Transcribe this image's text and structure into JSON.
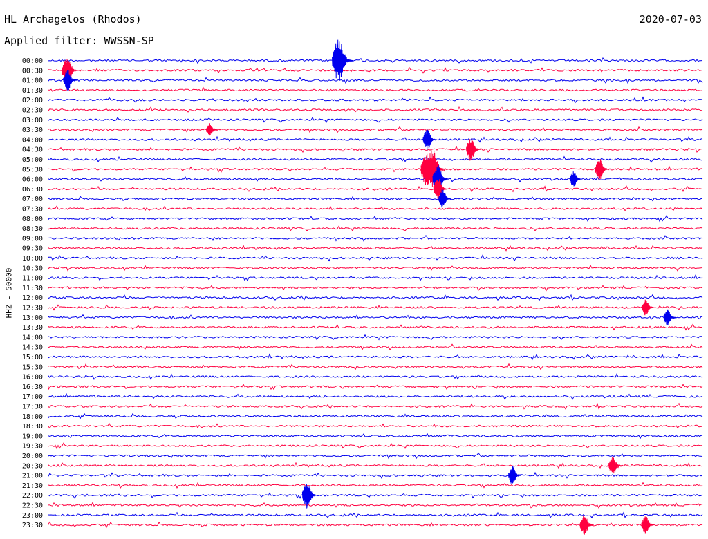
{
  "header": {
    "station": "HL Archagelos (Rhodos)",
    "date": "2020-07-03",
    "filter": "Applied filter: WWSSN-SP"
  },
  "chart_data": {
    "type": "line",
    "title": "HL Archagelos (Rhodos)",
    "xlabel": "",
    "ylabel": "HHZ - 50000",
    "grid": false,
    "legend": "none",
    "colors": [
      "#0000ee",
      "#ff0040"
    ],
    "rows": [
      "00:00",
      "00:30",
      "01:00",
      "01:30",
      "02:00",
      "02:30",
      "03:00",
      "03:30",
      "04:00",
      "04:30",
      "05:00",
      "05:30",
      "06:00",
      "06:30",
      "07:00",
      "07:30",
      "08:00",
      "08:30",
      "09:00",
      "09:30",
      "10:00",
      "10:30",
      "11:00",
      "11:30",
      "12:00",
      "12:30",
      "13:00",
      "13:30",
      "14:00",
      "14:30",
      "15:00",
      "15:30",
      "16:00",
      "16:30",
      "17:00",
      "17:30",
      "18:00",
      "18:30",
      "19:00",
      "19:30",
      "20:00",
      "20:30",
      "21:00",
      "21:30",
      "22:00",
      "22:30",
      "23:00",
      "23:30"
    ],
    "events": [
      {
        "row": "00:00",
        "minute": 13.5,
        "amplitude": 34
      },
      {
        "row": "00:30",
        "minute": 1,
        "amplitude": 22
      },
      {
        "row": "01:00",
        "minute": 1,
        "amplitude": 16
      },
      {
        "row": "03:30",
        "minute": 7.5,
        "amplitude": 10
      },
      {
        "row": "04:00",
        "minute": 17.5,
        "amplitude": 16
      },
      {
        "row": "04:30",
        "minute": 19.5,
        "amplitude": 18
      },
      {
        "row": "05:30",
        "minute": 17.5,
        "amplitude": 26
      },
      {
        "row": "05:30",
        "minute": 17.8,
        "amplitude": 30
      },
      {
        "row": "06:00",
        "minute": 18,
        "amplitude": 22
      },
      {
        "row": "06:30",
        "minute": 18,
        "amplitude": 18
      },
      {
        "row": "07:00",
        "minute": 18.2,
        "amplitude": 14
      },
      {
        "row": "05:30",
        "minute": 25.4,
        "amplitude": 16
      },
      {
        "row": "06:00",
        "minute": 24.2,
        "amplitude": 12
      },
      {
        "row": "12:30",
        "minute": 27.5,
        "amplitude": 12
      },
      {
        "row": "13:00",
        "minute": 28.5,
        "amplitude": 12
      },
      {
        "row": "20:30",
        "minute": 26,
        "amplitude": 14
      },
      {
        "row": "21:00",
        "minute": 21.4,
        "amplitude": 14
      },
      {
        "row": "23:30",
        "minute": 24.7,
        "amplitude": 16
      },
      {
        "row": "23:30",
        "minute": 27.5,
        "amplitude": 14
      },
      {
        "row": "22:00",
        "minute": 12,
        "amplitude": 20
      }
    ]
  }
}
